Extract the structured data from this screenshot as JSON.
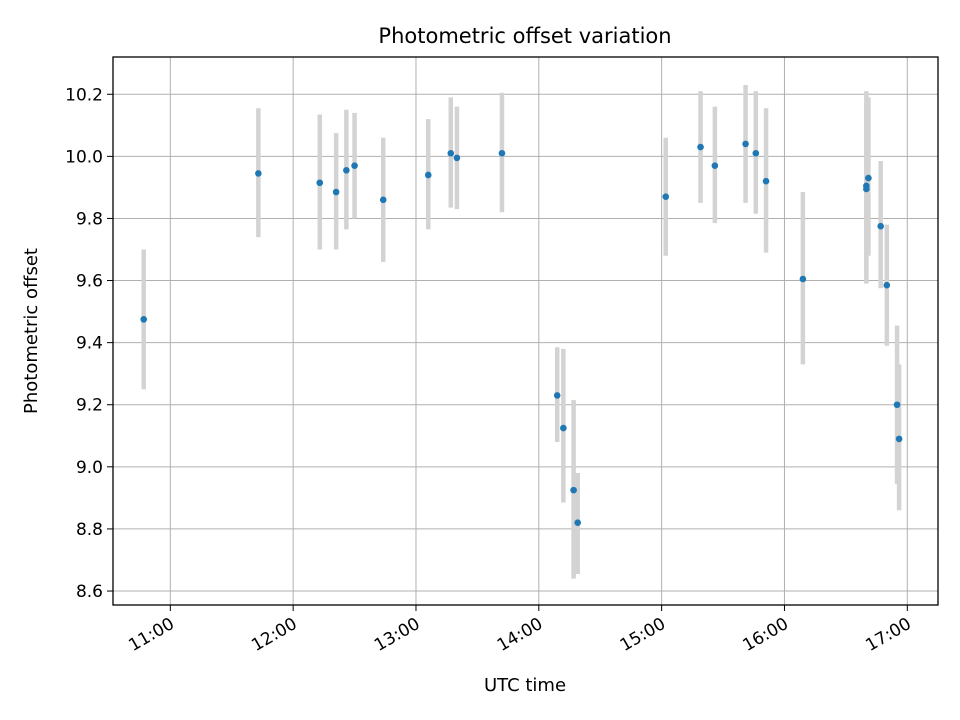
{
  "chart_data": {
    "type": "scatter",
    "title": "Photometric offset variation",
    "xlabel": "UTC time",
    "ylabel": "Photometric offset",
    "x_unit": "time of day (UTC)",
    "xlim": [
      "10:32",
      "17:15"
    ],
    "ylim": [
      8.555,
      10.32
    ],
    "xticks": [
      "11:00",
      "12:00",
      "13:00",
      "14:00",
      "15:00",
      "16:00",
      "17:00"
    ],
    "yticks": [
      "8.6",
      "8.8",
      "9.0",
      "9.2",
      "9.4",
      "9.6",
      "9.8",
      "10.0",
      "10.2"
    ],
    "grid": true,
    "colors": {
      "marker": "#1f77b4",
      "errorbar": "#d3d3d3",
      "grid": "#b0b0b0"
    },
    "series": [
      {
        "points": [
          {
            "x": "10:47",
            "y": 9.475,
            "lo": 9.25,
            "hi": 9.7
          },
          {
            "x": "11:43",
            "y": 9.945,
            "lo": 9.74,
            "hi": 10.155
          },
          {
            "x": "12:13",
            "y": 9.915,
            "lo": 9.7,
            "hi": 10.135
          },
          {
            "x": "12:21",
            "y": 9.885,
            "lo": 9.7,
            "hi": 10.075
          },
          {
            "x": "12:26",
            "y": 9.955,
            "lo": 9.765,
            "hi": 10.15
          },
          {
            "x": "12:30",
            "y": 9.97,
            "lo": 9.8,
            "hi": 10.14
          },
          {
            "x": "12:44",
            "y": 9.86,
            "lo": 9.66,
            "hi": 10.06
          },
          {
            "x": "13:06",
            "y": 9.94,
            "lo": 9.765,
            "hi": 10.12
          },
          {
            "x": "13:17",
            "y": 10.01,
            "lo": 9.835,
            "hi": 10.19
          },
          {
            "x": "13:20",
            "y": 9.995,
            "lo": 9.83,
            "hi": 10.16
          },
          {
            "x": "13:42",
            "y": 10.01,
            "lo": 9.82,
            "hi": 10.205
          },
          {
            "x": "14:09",
            "y": 9.23,
            "lo": 9.08,
            "hi": 9.385
          },
          {
            "x": "14:12",
            "y": 9.125,
            "lo": 8.885,
            "hi": 9.38
          },
          {
            "x": "14:17",
            "y": 8.925,
            "lo": 8.64,
            "hi": 9.215
          },
          {
            "x": "14:19",
            "y": 8.82,
            "lo": 8.655,
            "hi": 8.98
          },
          {
            "x": "15:02",
            "y": 9.87,
            "lo": 9.68,
            "hi": 10.06
          },
          {
            "x": "15:19",
            "y": 10.03,
            "lo": 9.85,
            "hi": 10.21
          },
          {
            "x": "15:26",
            "y": 9.97,
            "lo": 9.785,
            "hi": 10.16
          },
          {
            "x": "15:41",
            "y": 10.04,
            "lo": 9.85,
            "hi": 10.23
          },
          {
            "x": "15:46",
            "y": 10.01,
            "lo": 9.815,
            "hi": 10.21
          },
          {
            "x": "15:51",
            "y": 9.92,
            "lo": 9.69,
            "hi": 10.155
          },
          {
            "x": "16:09",
            "y": 9.605,
            "lo": 9.33,
            "hi": 9.885
          },
          {
            "x": "16:40",
            "y": 9.905,
            "lo": 9.59,
            "hi": 10.21
          },
          {
            "x": "16:40",
            "y": 9.895,
            "lo": 9.62,
            "hi": 10.17
          },
          {
            "x": "16:41",
            "y": 9.93,
            "lo": 9.68,
            "hi": 10.19
          },
          {
            "x": "16:47",
            "y": 9.775,
            "lo": 9.575,
            "hi": 9.985
          },
          {
            "x": "16:50",
            "y": 9.585,
            "lo": 9.39,
            "hi": 9.78
          },
          {
            "x": "16:55",
            "y": 9.2,
            "lo": 8.945,
            "hi": 9.455
          },
          {
            "x": "16:56",
            "y": 9.09,
            "lo": 8.86,
            "hi": 9.33
          }
        ]
      }
    ]
  }
}
